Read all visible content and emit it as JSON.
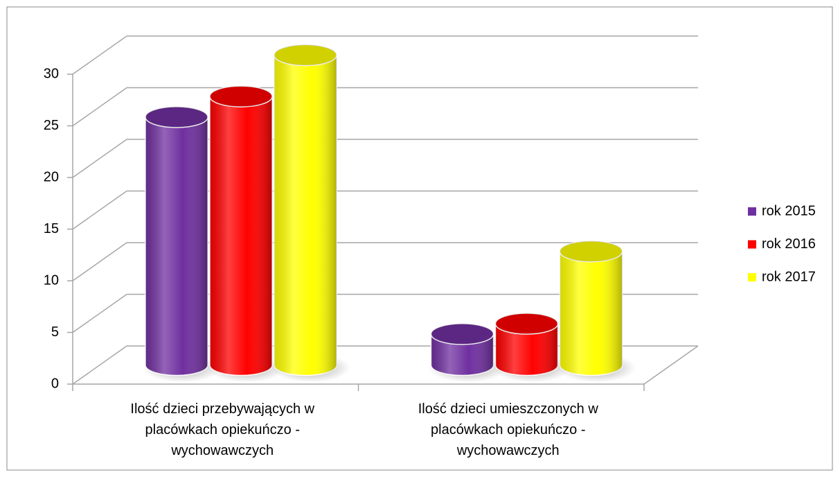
{
  "chart_data": {
    "type": "bar3d",
    "categories": [
      "Ilość dzieci przebywających w placówkach opiekuńczo - wychowawczych",
      "Ilość dzieci umieszczonych w placówkach opiekuńczo - wychowawczych"
    ],
    "series": [
      {
        "name": "rok 2015",
        "color": "#7030a0",
        "values": [
          24,
          3
        ]
      },
      {
        "name": "rok 2016",
        "color": "#ff0000",
        "values": [
          26,
          4
        ]
      },
      {
        "name": "rok 2017",
        "color": "#ffff00",
        "values": [
          30,
          11
        ]
      }
    ],
    "ylim": [
      0,
      30
    ],
    "yticks": [
      0,
      5,
      10,
      15,
      20,
      25,
      30
    ],
    "grid": true,
    "legend": "right"
  }
}
